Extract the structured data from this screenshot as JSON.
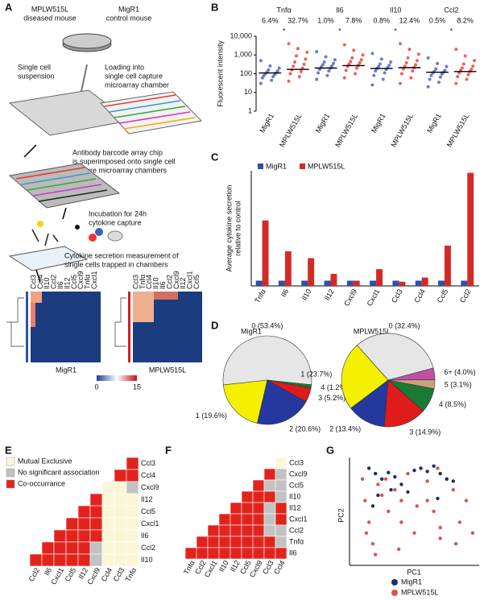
{
  "panel_letters": [
    "A",
    "B",
    "C",
    "D",
    "E",
    "F",
    "G"
  ],
  "diagram": {
    "mouse_left": "MPLW515L",
    "mouse_left_sub": "diseased mouse",
    "mouse_right": "MigR1",
    "mouse_right_sub": "control mouse",
    "step_suspension": [
      "Single cell",
      "suspension"
    ],
    "step_loading": [
      "Loading into",
      "single cell capture",
      "microarray chamber"
    ],
    "step_antibody": [
      "Antibody barcode array chip",
      "is superimposed onto single cell",
      "capture microarray chambers"
    ],
    "step_incubation": [
      "Incubation for 24h",
      "cytokine capture"
    ],
    "step_measurement": [
      "Cytokine secretion measurement of",
      "single cells trapped in chambers"
    ]
  },
  "heatmaps": [
    {
      "label": "MigR1",
      "cytokines": [
        "Ccl3",
        "Ccl4",
        "Il10",
        "Ccl2",
        "Il6",
        "Il12",
        "Ccl5",
        "Cxcl9",
        "Tnfα",
        "Cxcl1"
      ]
    },
    {
      "label": "MPLW515L",
      "cytokines": [
        "Ccl3",
        "Tnfα",
        "Ccl4",
        "Il10",
        "Il6",
        "Ccl2",
        "Cxcl9",
        "Il12",
        "Cxcl1",
        "Ccl5"
      ]
    }
  ],
  "heatmap_scale": {
    "min": 0,
    "max": 15
  },
  "chart_data": [
    {
      "type": "strip",
      "ylabel": "Fluorescent intensity",
      "log": true,
      "ylim": [
        1,
        10000
      ],
      "yticks": [
        1,
        10,
        100,
        {
          "value": 1000,
          "label": "1,000"
        },
        {
          "value": 10000,
          "label": "10,000"
        }
      ],
      "groups": [
        "Tnfα",
        "Il6",
        "Il10",
        "Ccl2"
      ],
      "significance": [
        "*",
        "*",
        "*",
        "*"
      ],
      "categories": [
        "MigR1",
        "MPLW515L",
        "MigR1",
        "MPLW515L",
        "MigR1",
        "MPLW515L",
        "MigR1",
        "MPLW515L"
      ],
      "percent_labels": [
        "6.4%",
        "32.7%",
        "1.0%",
        "7.8%",
        "0.8%",
        "12.4%",
        "0.5%",
        "8.2%"
      ],
      "colors": [
        "#5566bb",
        "#e8473d"
      ],
      "medians": [
        110,
        170,
        200,
        270,
        190,
        210,
        120,
        130
      ],
      "values": [
        [
          30,
          45,
          60,
          70,
          80,
          90,
          100,
          110,
          120,
          140,
          160,
          200,
          260,
          500
        ],
        [
          40,
          70,
          100,
          130,
          160,
          200,
          250,
          320,
          420,
          600,
          900,
          1400,
          2200,
          4000
        ],
        [
          50,
          80,
          110,
          140,
          170,
          200,
          230,
          260,
          300,
          360,
          420,
          550,
          800,
          1500
        ],
        [
          60,
          100,
          150,
          200,
          250,
          280,
          320,
          380,
          450,
          550,
          700,
          1000,
          1800,
          3500
        ],
        [
          25,
          50,
          80,
          110,
          140,
          170,
          190,
          210,
          240,
          280,
          330,
          420,
          600,
          1200
        ],
        [
          30,
          60,
          100,
          140,
          180,
          210,
          250,
          300,
          380,
          500,
          700,
          1100,
          2000,
          4000
        ],
        [
          20,
          35,
          50,
          65,
          80,
          95,
          110,
          120,
          130,
          150,
          180,
          240,
          350,
          700
        ],
        [
          30,
          50,
          70,
          90,
          110,
          130,
          150,
          170,
          200,
          250,
          330,
          500,
          900,
          2000
        ]
      ]
    },
    {
      "type": "bar",
      "ylabel": [
        "Average cytokine secretion",
        "relative to control"
      ],
      "ylim": [
        0,
        22
      ],
      "categories": [
        "Tnfα",
        "Il6",
        "Il10",
        "Il12",
        "Cxcl9",
        "Cxcl1",
        "Ccl3",
        "Ccl4",
        "Ccl5",
        "Ccl2"
      ],
      "series": [
        {
          "name": "MigR1",
          "color": "#2f4fa8",
          "values": [
            1,
            1,
            1,
            1,
            1,
            1,
            1,
            1,
            1,
            1
          ]
        },
        {
          "name": "MPLW515L",
          "color": "#d42a25",
          "values": [
            12.5,
            6.6,
            5.3,
            2.3,
            1.0,
            3.2,
            0.8,
            1.6,
            7.7,
            21.6
          ]
        }
      ]
    },
    {
      "type": "pie",
      "title": "MigR1",
      "categories": [
        "0",
        "1",
        "2",
        "3",
        "4"
      ],
      "values": [
        53.4,
        19.6,
        20.6,
        5.2,
        1.2
      ],
      "value_labels": [
        "0 (53.4%)",
        "1 (19.6%)",
        "2 (20.6%)",
        "3 (5.2%)",
        "4 (1.2%)"
      ],
      "colors": [
        "#e6e6e6",
        "#f5f000",
        "#2438a0",
        "#e01b1b",
        "#1a7a35"
      ]
    },
    {
      "type": "pie",
      "title": "MPLW515L",
      "categories": [
        "0",
        "1",
        "2",
        "3",
        "4",
        "5",
        "6+"
      ],
      "values": [
        32.4,
        23.7,
        13.4,
        14.9,
        8.5,
        3.1,
        4.0
      ],
      "value_labels": [
        "0 (32.4%)",
        "1 (23.7%)",
        "2 (13.4%)",
        "3 (14.9%)",
        "4 (8.5%)",
        "5 (3.1%)",
        "6+ (4.0%)"
      ],
      "colors": [
        "#e6e6e6",
        "#f5f000",
        "#2438a0",
        "#e01b1b",
        "#1a7a35",
        "#c9a27e",
        "#c24fa5"
      ]
    },
    {
      "type": "matrix",
      "legend": [
        {
          "name": "Mutual Exclusive",
          "color": "#fbf6d6"
        },
        {
          "name": "No significant association",
          "color": "#c2c2c2"
        },
        {
          "name": "Co-occurrance",
          "color": "#e2231c"
        }
      ],
      "rows": [
        "Ccl3",
        "Ccl4",
        "Cxcl9",
        "Il12",
        "Ccl5",
        "Cxcl1",
        "Il6",
        "Ccl2",
        "Il10"
      ],
      "columns": [
        "Ccl2",
        "Il6",
        "Cxcl1",
        "Ccl5",
        "Il12",
        "Cxcl9",
        "Ccl4",
        "Ccl3",
        "Tnfα"
      ],
      "cells": [
        [
          2
        ],
        [
          2,
          2
        ],
        [
          0,
          0,
          1
        ],
        [
          2,
          0,
          0,
          0
        ],
        [
          2,
          2,
          0,
          0,
          0
        ],
        [
          2,
          2,
          2,
          0,
          0,
          0
        ],
        [
          2,
          2,
          2,
          2,
          0,
          0,
          0
        ],
        [
          2,
          2,
          2,
          2,
          1,
          0,
          0,
          0
        ],
        [
          2,
          2,
          2,
          2,
          2,
          1,
          0,
          0,
          0
        ]
      ]
    },
    {
      "type": "matrix",
      "legend": [
        {
          "color": "#fbf6d6"
        },
        {
          "color": "#c2c2c2"
        },
        {
          "color": "#e2231c"
        }
      ],
      "rows": [
        "Ccl3",
        "Cxcl9",
        "Ccl5",
        "Il10",
        "Il12",
        "Cxcl1",
        "Ccl2",
        "Tnfα",
        "Il6"
      ],
      "columns": [
        "Tnfα",
        "Ccl2",
        "Cxcl1",
        "Il10",
        "Il12",
        "Ccl5",
        "Cxcl9",
        "Ccl3",
        "Ccl4"
      ],
      "cells": [
        [
          0
        ],
        [
          2,
          1
        ],
        [
          2,
          1,
          1
        ],
        [
          2,
          2,
          2,
          1
        ],
        [
          2,
          2,
          2,
          1,
          2
        ],
        [
          2,
          2,
          2,
          2,
          1,
          2
        ],
        [
          2,
          2,
          2,
          2,
          2,
          1,
          1
        ],
        [
          2,
          2,
          2,
          2,
          2,
          2,
          2,
          1
        ],
        [
          2,
          2,
          2,
          2,
          2,
          2,
          2,
          2,
          2
        ]
      ]
    },
    {
      "type": "scatter",
      "xlabel": "PC1",
      "ylabel": "PC2",
      "xlim": [
        0,
        10
      ],
      "ylim": [
        0,
        10
      ],
      "series": [
        {
          "name": "MPLW515L",
          "color": "#e0524a",
          "x": [
            1,
            1.2,
            1.5,
            1.8,
            2,
            2.5,
            3,
            3.5,
            4,
            4.5,
            5,
            5.5,
            6,
            6.5,
            7,
            7.5,
            8,
            8.5,
            9,
            9.5,
            2.2,
            3.8,
            5.2,
            6.8,
            8.2,
            4,
            6,
            7,
            1.3,
            2.8
          ],
          "y": [
            8,
            6,
            4,
            2,
            1,
            6.5,
            5,
            7,
            4,
            8.5,
            3,
            9,
            6,
            5,
            2.5,
            8,
            7,
            4,
            6,
            3,
            7.5,
            1.5,
            5.5,
            9,
            2,
            6,
            7.8,
            3.5,
            3,
            8
          ]
        },
        {
          "name": "MigR1",
          "color": "#1f2d6e",
          "x": [
            1.5,
            2,
            2.5,
            3,
            3.5,
            4,
            5,
            5.5,
            6,
            6.5,
            7,
            7.5,
            8,
            2.2,
            3.2,
            4.5,
            6.8,
            1.8
          ],
          "y": [
            9,
            8.5,
            8,
            8.6,
            8.2,
            7.5,
            8.8,
            9,
            8.7,
            9.2,
            8.5,
            8,
            7.8,
            6.5,
            7,
            6.8,
            6.2,
            5.5
          ]
        }
      ]
    }
  ]
}
